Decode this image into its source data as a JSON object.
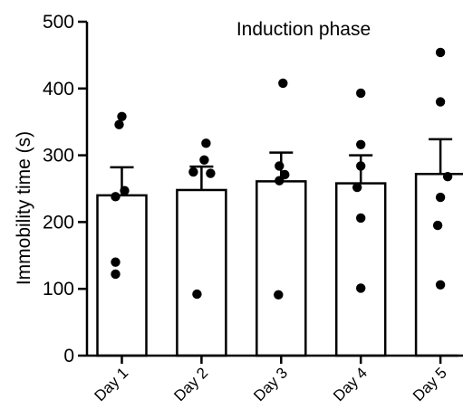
{
  "chart_data": {
    "type": "bar",
    "title": "Induction phase",
    "ylabel": "Immobility time (s)",
    "xlabel": "",
    "categories": [
      "Day 1",
      "Day 2",
      "Day 3",
      "Day 4",
      "Day 5"
    ],
    "values": [
      240,
      248,
      261,
      258,
      272
    ],
    "error_upper": [
      282,
      283,
      304,
      300,
      324
    ],
    "points": [
      [
        358,
        346,
        247,
        238,
        140,
        122
      ],
      [
        318,
        293,
        275,
        273,
        92
      ],
      [
        408,
        284,
        271,
        262,
        91
      ],
      [
        393,
        316,
        284,
        252,
        206,
        101
      ],
      [
        454,
        380,
        268,
        237,
        195,
        106
      ]
    ],
    "ylim": [
      0,
      500
    ],
    "yticks": [
      0,
      100,
      200,
      300,
      400,
      500
    ],
    "grid": false,
    "bar_fill": "#ffffff",
    "bar_stroke": "#000000",
    "point_color": "#000000"
  }
}
